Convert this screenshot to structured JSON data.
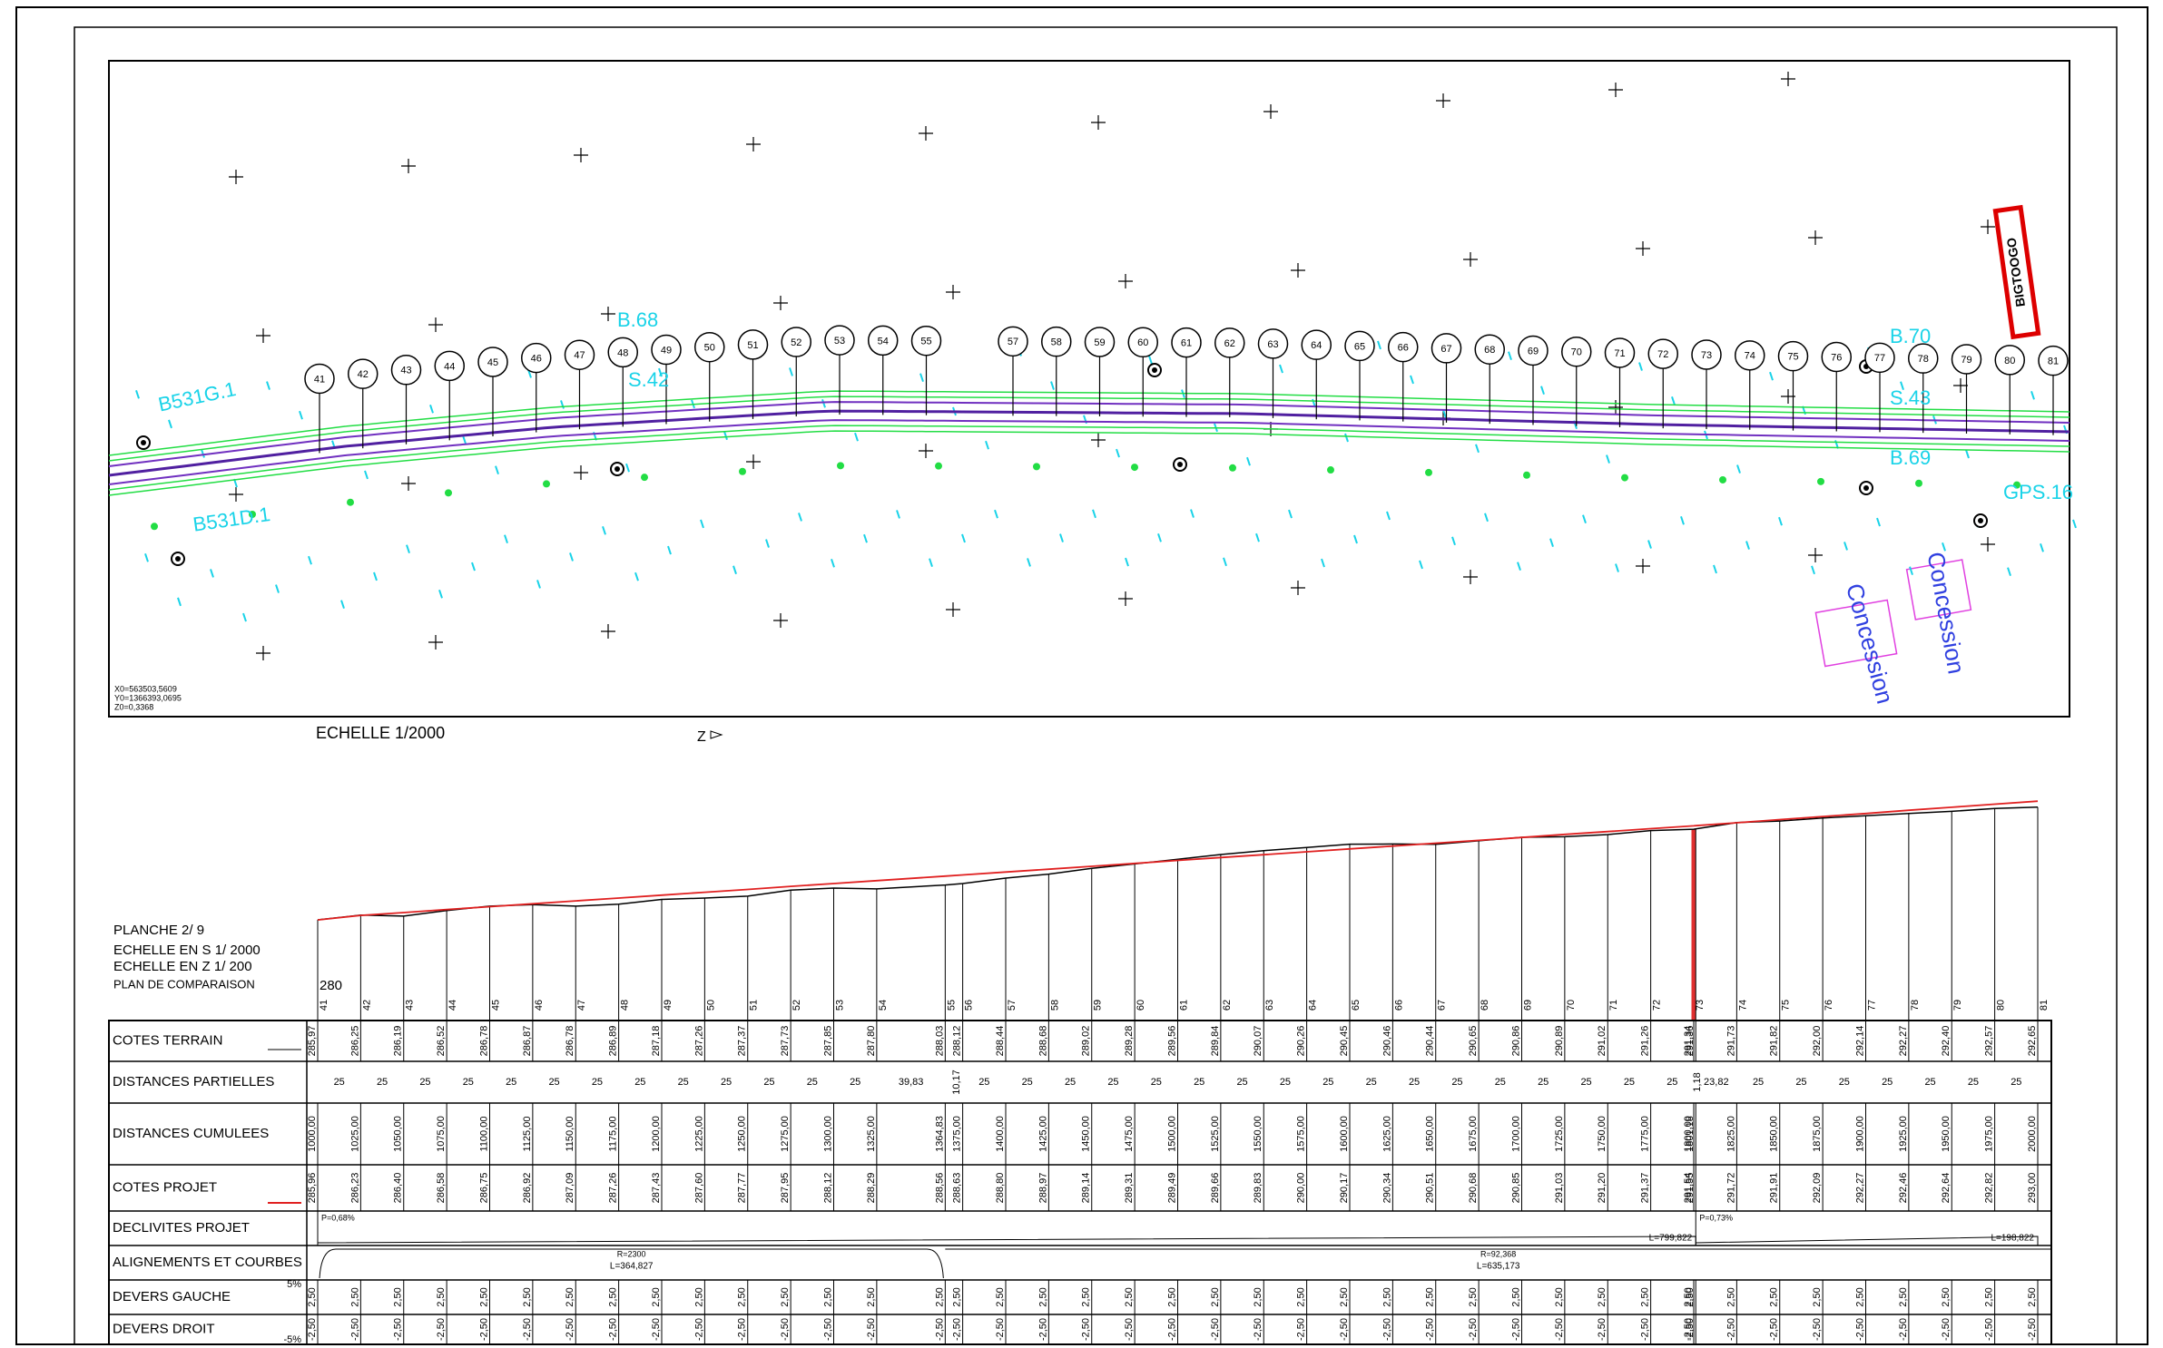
{
  "plan": {
    "markers": [
      "41",
      "42",
      "43",
      "44",
      "45",
      "46",
      "47",
      "48",
      "49",
      "50",
      "51",
      "52",
      "53",
      "54",
      "55",
      "57",
      "58",
      "59",
      "60",
      "61",
      "62",
      "63",
      "64",
      "65",
      "66",
      "67",
      "68",
      "69",
      "70",
      "71",
      "72",
      "73",
      "74",
      "75",
      "76",
      "77",
      "78",
      "79",
      "80",
      "81"
    ],
    "labels": [
      "B531G.1",
      "B.68",
      "S.42",
      "B531D.1",
      "B.70",
      "S.43",
      "B.69",
      "GPS.16"
    ],
    "site": "BIGTOOGO",
    "concession": [
      "Concession",
      "Concession"
    ],
    "scale": "ECHELLE 1/2000",
    "north": "Z",
    "origin": [
      "X0=563503,5609",
      "Y0=1366393,0695",
      "Z0=0,3368"
    ]
  },
  "title_block": {
    "sheet": "PLANCHE  2/ 9",
    "scale_s": "ECHELLE EN S 1/  2000",
    "scale_z": "ECHELLE EN Z 1/  200",
    "comparison_label": "PLAN DE COMPARAISON",
    "comparison_level": "280"
  },
  "table": {
    "row_labels": [
      "COTES TERRAIN",
      "DISTANCES PARTIELLES",
      "DISTANCES CUMULEES",
      "COTES PROJET",
      "DECLIVITES PROJET",
      "ALIGNEMENTS ET COURBES",
      "DEVERS GAUCHE",
      "DEVERS DROIT"
    ],
    "devers_gauche_label": "5%",
    "devers_droit_label": "-5%",
    "stations": [
      "41",
      "42",
      "43",
      "44",
      "45",
      "46",
      "47",
      "48",
      "49",
      "50",
      "51",
      "52",
      "53",
      "54",
      "55",
      "56",
      "57",
      "58",
      "59",
      "60",
      "61",
      "62",
      "63",
      "64",
      "65",
      "66",
      "67",
      "68",
      "69",
      "70",
      "71",
      "72",
      "73",
      null,
      "74",
      "75",
      "76",
      "77",
      "78",
      "79",
      "80",
      "81"
    ],
    "cotes_terrain": [
      "285,97",
      "286,25",
      "286,19",
      "286,52",
      "286,78",
      "286,87",
      "286,78",
      "286,89",
      "287,18",
      "287,26",
      "287,37",
      "287,73",
      "287,85",
      "287,80",
      "288,03",
      "288,12",
      "288,44",
      "288,68",
      "289,02",
      "289,28",
      "289,56",
      "289,84",
      "290,07",
      "290,26",
      "290,45",
      "290,46",
      "290,44",
      "290,65",
      "290,86",
      "290,89",
      "291,02",
      "291,26",
      "291,34",
      "291,36",
      "291,73",
      "291,82",
      "292,00",
      "292,14",
      "292,27",
      "292,40",
      "292,57",
      "292,65"
    ],
    "distances_partielles": [
      "25",
      "25",
      "25",
      "25",
      "25",
      "25",
      "25",
      "25",
      "25",
      "25",
      "25",
      "25",
      "25",
      "39,83",
      "10,17",
      "25",
      "25",
      "25",
      "25",
      "25",
      "25",
      "25",
      "25",
      "25",
      "25",
      "25",
      "25",
      "25",
      "25",
      "25",
      "25",
      "25",
      "1,18",
      "23,82",
      "25",
      "25",
      "25",
      "25",
      "25",
      "25",
      "25"
    ],
    "distances_cumulees": [
      "1000,00",
      "1025,00",
      "1050,00",
      "1075,00",
      "1100,00",
      "1125,00",
      "1150,00",
      "1175,00",
      "1200,00",
      "1225,00",
      "1250,00",
      "1275,00",
      "1300,00",
      "1325,00",
      "1364,83",
      "1375,00",
      "1400,00",
      "1425,00",
      "1450,00",
      "1475,00",
      "1500,00",
      "1525,00",
      "1550,00",
      "1575,00",
      "1600,00",
      "1625,00",
      "1650,00",
      "1675,00",
      "1700,00",
      "1725,00",
      "1750,00",
      "1775,00",
      "1800,00",
      "1801,18",
      "1825,00",
      "1850,00",
      "1875,00",
      "1900,00",
      "1925,00",
      "1950,00",
      "1975,00",
      "2000,00"
    ],
    "cotes_projet": [
      "285,96",
      "286,23",
      "286,40",
      "286,58",
      "286,75",
      "286,92",
      "287,09",
      "287,26",
      "287,43",
      "287,60",
      "287,77",
      "287,95",
      "288,12",
      "288,29",
      "288,56",
      "288,63",
      "288,80",
      "288,97",
      "289,14",
      "289,31",
      "289,49",
      "289,66",
      "289,83",
      "290,00",
      "290,17",
      "290,34",
      "290,51",
      "290,68",
      "290,85",
      "291,03",
      "291,20",
      "291,37",
      "291,54",
      "291,55",
      "291,72",
      "291,91",
      "292,09",
      "292,27",
      "292,46",
      "292,64",
      "292,82",
      "293,00"
    ],
    "declivites": [
      {
        "p": "P=0,68%",
        "l": "L=799,822"
      },
      {
        "p": "P=0,73%",
        "l": "L=198,822"
      }
    ],
    "alignements": [
      {
        "r": "R=2300",
        "l": "L=364,827"
      },
      {
        "r": "R=92,368",
        "l": "L=635,173"
      }
    ],
    "devers_gauche": [
      "2,50",
      "2,50",
      "2,50",
      "2,50",
      "2,50",
      "2,50",
      "2,50",
      "2,50",
      "2,50",
      "2,50",
      "2,50",
      "2,50",
      "2,50",
      "2,50",
      "2,50",
      "2,50",
      "2,50",
      "2,50",
      "2,50",
      "2,50",
      "2,50",
      "2,50",
      "2,50",
      "2,50",
      "2,50",
      "2,50",
      "2,50",
      "2,50",
      "2,50",
      "2,50",
      "2,50",
      "2,50",
      "2,50",
      "2,50",
      "2,50",
      "2,50",
      "2,50",
      "2,50",
      "2,50",
      "2,50",
      "2,50",
      "2,50"
    ],
    "devers_droit": [
      "-2,50",
      "-2,50",
      "-2,50",
      "-2,50",
      "-2,50",
      "-2,50",
      "-2,50",
      "-2,50",
      "-2,50",
      "-2,50",
      "-2,50",
      "-2,50",
      "-2,50",
      "-2,50",
      "-2,50",
      "-2,50",
      "-2,50",
      "-2,50",
      "-2,50",
      "-2,50",
      "-2,50",
      "-2,50",
      "-2,50",
      "-2,50",
      "-2,50",
      "-2,50",
      "-2,50",
      "-2,50",
      "-2,50",
      "-2,50",
      "-2,50",
      "-2,50",
      "-2,50",
      "-2,50",
      "-2,50",
      "-2,50",
      "-2,50",
      "-2,50",
      "-2,50",
      "-2,50",
      "-2,50",
      "-2,50"
    ]
  }
}
